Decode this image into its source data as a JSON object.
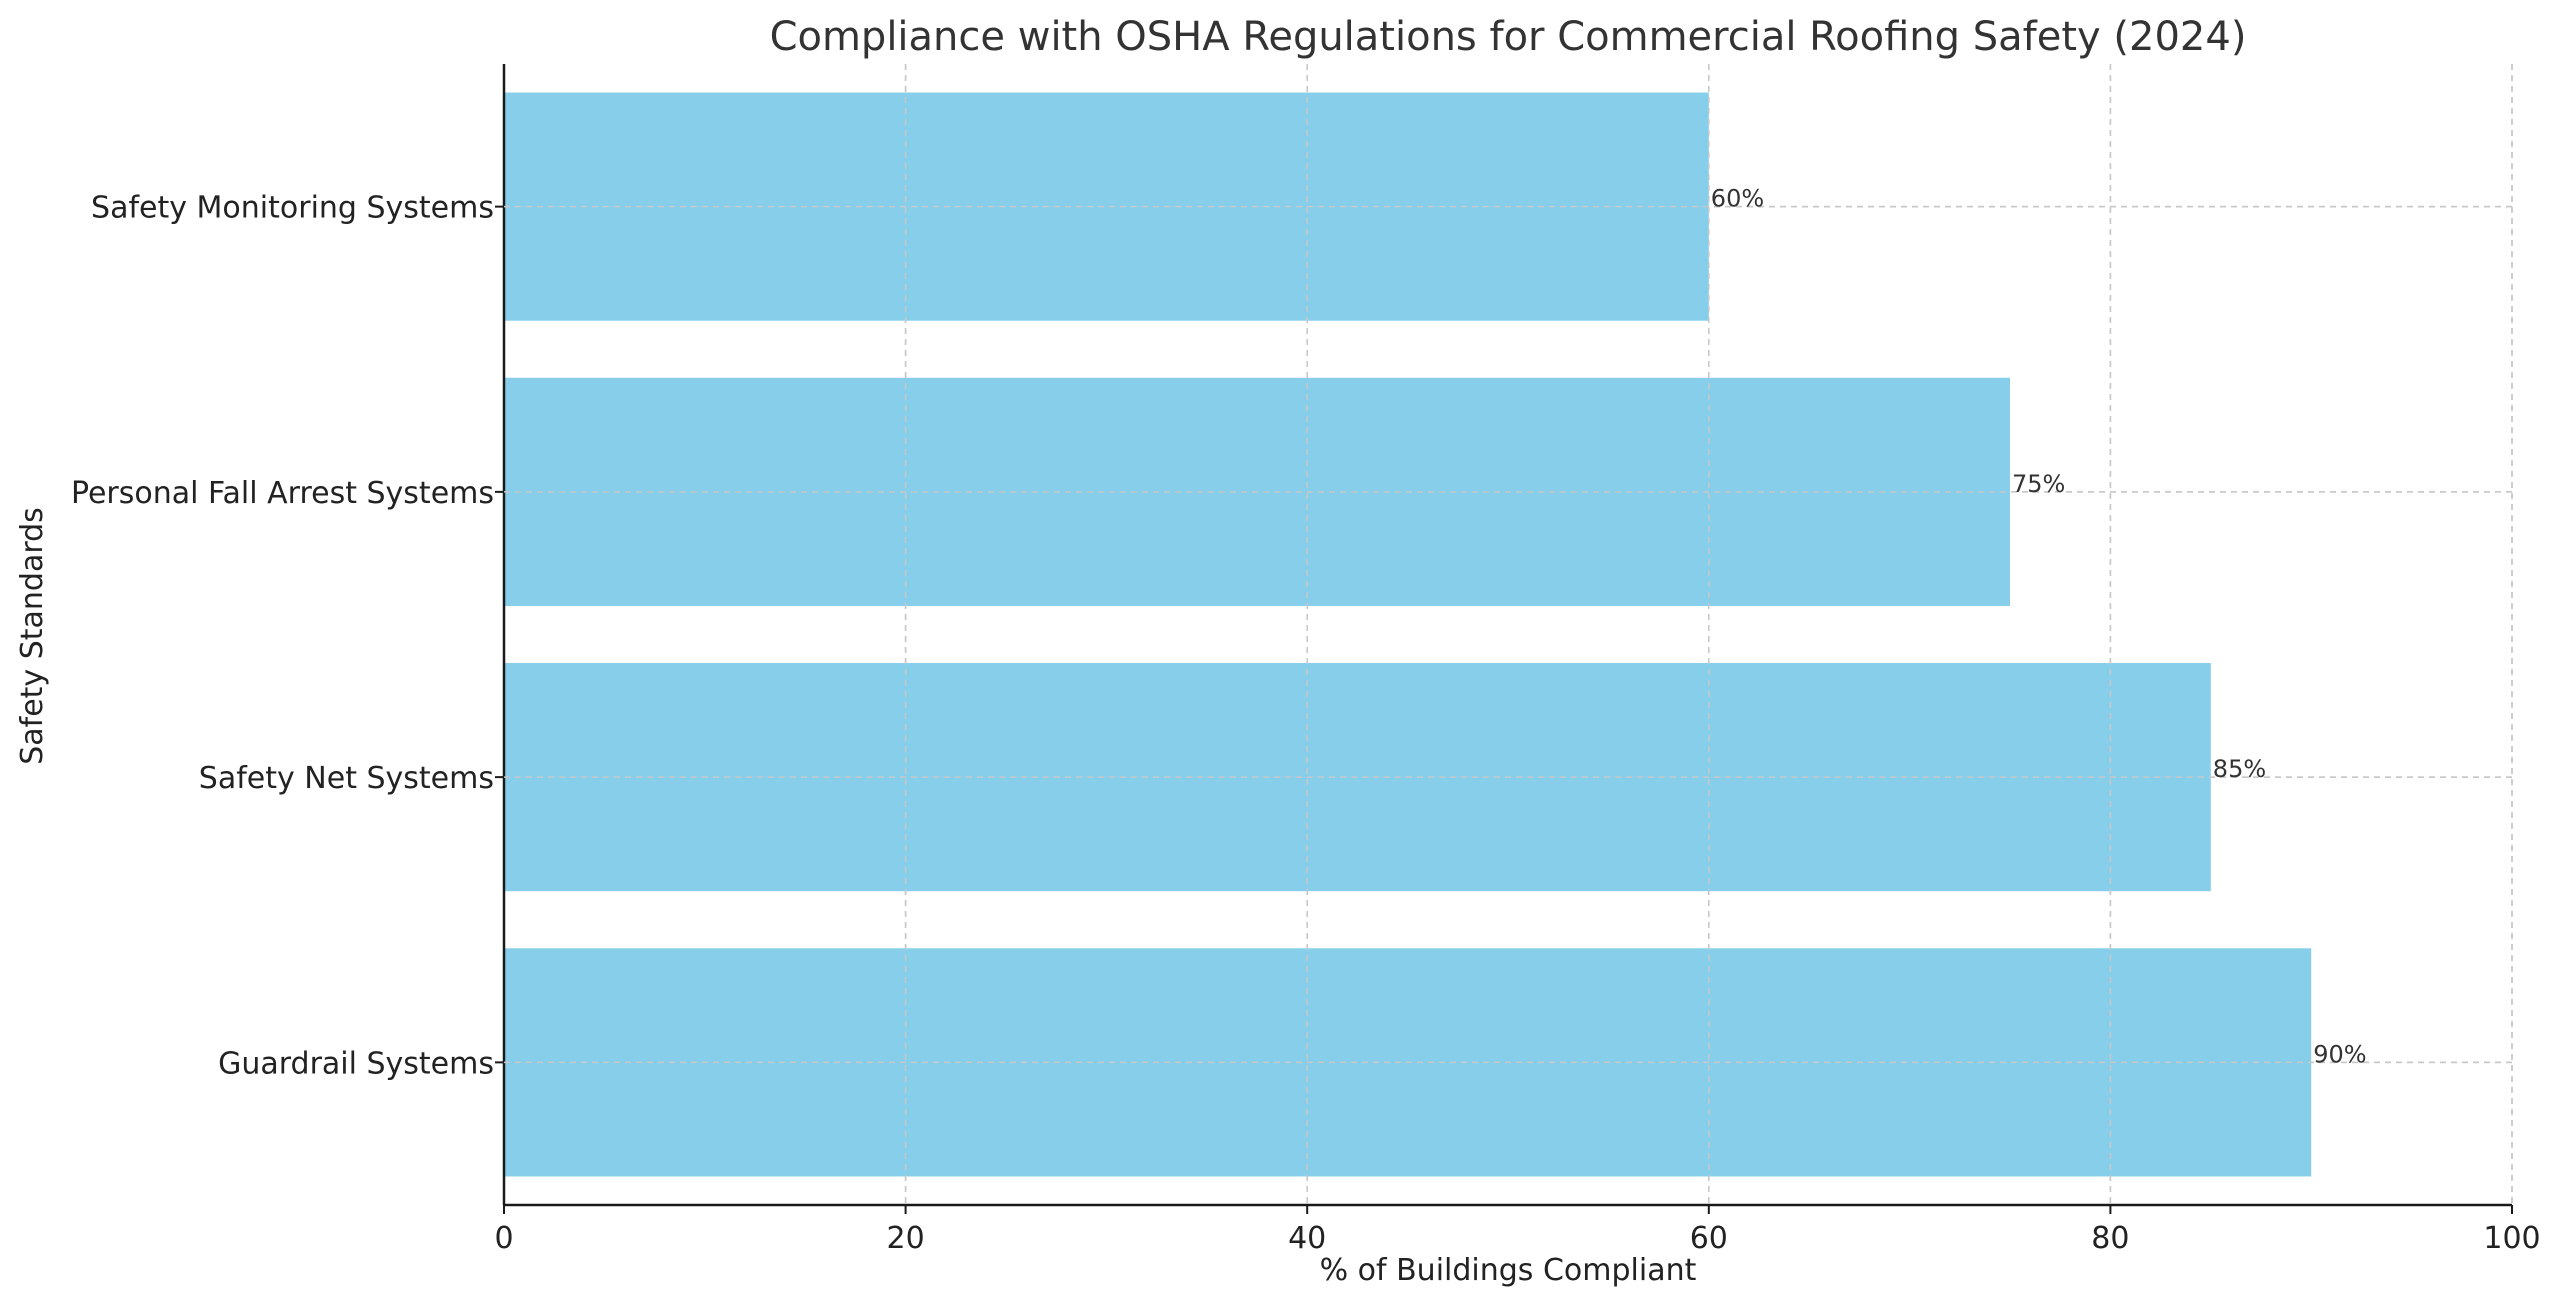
{
  "chart_data": {
    "type": "bar",
    "orientation": "horizontal",
    "title": "Compliance with OSHA Regulations for Commercial Roofing Safety (2024)",
    "xlabel": "% of Buildings Compliant",
    "ylabel": "Safety Standards",
    "categories": [
      "Guardrail Systems",
      "Safety Net Systems",
      "Personal Fall Arrest Systems",
      "Safety Monitoring Systems"
    ],
    "values": [
      90,
      85,
      75,
      60
    ],
    "data_labels": [
      "90%",
      "85%",
      "75%",
      "60%"
    ],
    "xlim": [
      0,
      100
    ],
    "xticks": [
      0,
      20,
      40,
      60,
      80,
      100
    ],
    "xtick_labels": [
      "0",
      "20",
      "40",
      "60",
      "80",
      "100"
    ],
    "grid": true,
    "bar_color": "#87CEEB"
  }
}
